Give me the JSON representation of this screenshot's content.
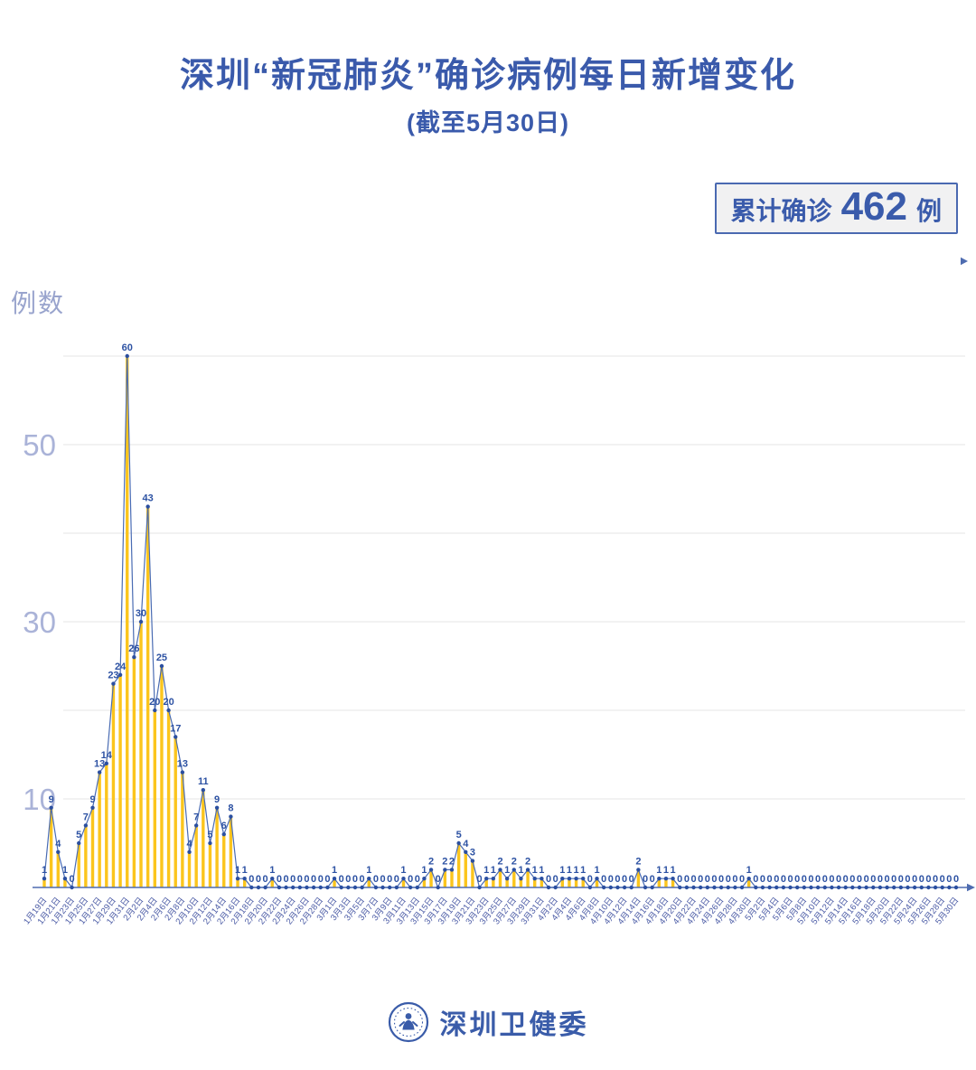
{
  "title": "深圳“新冠肺炎”确诊病例每日新增变化",
  "subtitle": "(截至5月30日)",
  "summary_badge": {
    "prefix": "累计确诊",
    "value": "462",
    "suffix": "例"
  },
  "y_axis_label": "例数",
  "footer": {
    "org_name": "深圳卫健委"
  },
  "colors": {
    "title": "#3A5AAB",
    "bar": "#FBC51D",
    "line": "#4A6CB3",
    "dot": "#2B4FA0",
    "value_label": "#2D52A3",
    "grid": "#EBEBEB",
    "axis": "#4E6CB0",
    "y_tick": "#AAB3D8",
    "date_label": "#4C5CA6",
    "badge_border": "#4A69B1",
    "badge_bg": "#F1F1F2"
  },
  "chart_data": {
    "type": "line",
    "title": "深圳“新冠肺炎”确诊病例每日新增变化",
    "subtitle": "(截至5月30日)",
    "xlabel": "",
    "ylabel": "例数",
    "ylim": [
      0,
      62
    ],
    "grid": true,
    "gridline_values": [
      10,
      20,
      30,
      40,
      50,
      60
    ],
    "y_tick_values": [
      10,
      30,
      50
    ],
    "x_label_step": 2,
    "total_label": "累计确诊 462 例",
    "total": 462,
    "x": [
      "1月19日",
      "1月20日",
      "1月21日",
      "1月22日",
      "1月23日",
      "1月24日",
      "1月25日",
      "1月26日",
      "1月27日",
      "1月28日",
      "1月29日",
      "1月30日",
      "1月31日",
      "2月1日",
      "2月2日",
      "2月3日",
      "2月4日",
      "2月5日",
      "2月6日",
      "2月7日",
      "2月8日",
      "2月9日",
      "2月10日",
      "2月11日",
      "2月12日",
      "2月13日",
      "2月14日",
      "2月15日",
      "2月16日",
      "2月17日",
      "2月18日",
      "2月19日",
      "2月20日",
      "2月21日",
      "2月22日",
      "2月23日",
      "2月24日",
      "2月25日",
      "2月26日",
      "2月27日",
      "2月28日",
      "2月29日",
      "3月1日",
      "3月2日",
      "3月3日",
      "3月4日",
      "3月5日",
      "3月6日",
      "3月7日",
      "3月8日",
      "3月9日",
      "3月10日",
      "3月11日",
      "3月12日",
      "3月13日",
      "3月14日",
      "3月15日",
      "3月16日",
      "3月17日",
      "3月18日",
      "3月19日",
      "3月20日",
      "3月21日",
      "3月22日",
      "3月23日",
      "3月24日",
      "3月25日",
      "3月26日",
      "3月27日",
      "3月28日",
      "3月29日",
      "3月30日",
      "3月31日",
      "4月1日",
      "4月2日",
      "4月3日",
      "4月4日",
      "4月5日",
      "4月6日",
      "4月7日",
      "4月8日",
      "4月9日",
      "4月10日",
      "4月11日",
      "4月12日",
      "4月13日",
      "4月14日",
      "4月15日",
      "4月16日",
      "4月17日",
      "4月18日",
      "4月19日",
      "4月20日",
      "4月21日",
      "4月22日",
      "4月23日",
      "4月24日",
      "4月25日",
      "4月26日",
      "4月27日",
      "4月28日",
      "4月29日",
      "4月30日",
      "5月1日",
      "5月2日",
      "5月3日",
      "5月4日",
      "5月5日",
      "5月6日",
      "5月7日",
      "5月8日",
      "5月9日",
      "5月10日",
      "5月11日",
      "5月12日",
      "5月13日",
      "5月14日",
      "5月15日",
      "5月16日",
      "5月17日",
      "5月18日",
      "5月19日",
      "5月20日",
      "5月21日",
      "5月22日",
      "5月23日",
      "5月24日",
      "5月25日",
      "5月26日",
      "5月27日",
      "5月28日",
      "5月29日",
      "5月30日"
    ],
    "values": [
      1,
      9,
      4,
      1,
      0,
      5,
      7,
      9,
      13,
      14,
      23,
      24,
      60,
      26,
      30,
      43,
      20,
      25,
      20,
      17,
      13,
      4,
      7,
      11,
      5,
      9,
      6,
      8,
      1,
      1,
      0,
      0,
      0,
      1,
      0,
      0,
      0,
      0,
      0,
      0,
      0,
      0,
      1,
      0,
      0,
      0,
      0,
      1,
      0,
      0,
      0,
      0,
      1,
      0,
      0,
      1,
      2,
      0,
      2,
      2,
      5,
      4,
      3,
      0,
      1,
      1,
      2,
      1,
      2,
      1,
      2,
      1,
      1,
      0,
      0,
      1,
      1,
      1,
      1,
      0,
      1,
      0,
      0,
      0,
      0,
      0,
      2,
      0,
      0,
      1,
      1,
      1,
      0,
      0,
      0,
      0,
      0,
      0,
      0,
      0,
      0,
      0,
      1,
      0,
      0,
      0,
      0,
      0,
      0,
      0,
      0,
      0,
      0,
      0,
      0,
      0,
      0,
      0,
      0,
      0,
      0,
      0,
      0,
      0,
      0,
      0,
      0,
      0,
      0,
      0,
      0,
      0,
      0
    ]
  }
}
